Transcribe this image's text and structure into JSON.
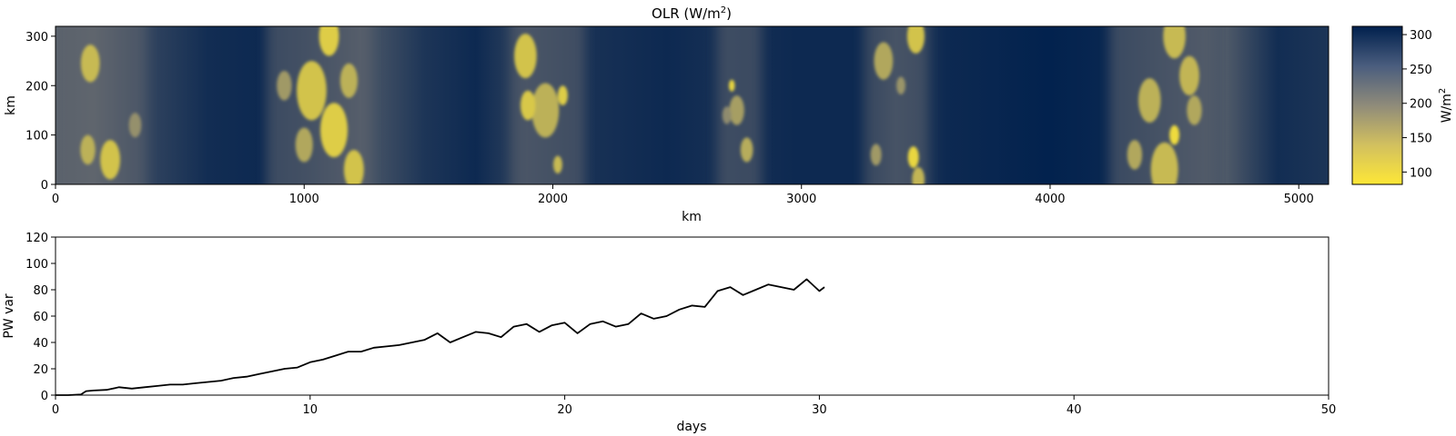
{
  "chart_data": [
    {
      "type": "heatmap",
      "title": "OLR (W/m",
      "title_sup": "2",
      "title_end": ")",
      "xlabel": "km",
      "ylabel": "km",
      "xlim": [
        0,
        5120
      ],
      "ylim": [
        0,
        320
      ],
      "xticks": [
        0,
        1000,
        2000,
        3000,
        4000,
        5000
      ],
      "yticks": [
        0,
        100,
        200,
        300
      ],
      "colormap": "cividis (reversed)",
      "colors": {
        "low": "#fde737",
        "mid": "#7c7b78",
        "high": "#00204d"
      },
      "colorbar": {
        "label": "W/m",
        "label_sup": "2",
        "range": [
          82,
          312
        ],
        "ticks": [
          100,
          150,
          200,
          250,
          300
        ]
      },
      "convective_bands_km": [
        {
          "center": 180,
          "width": 380
        },
        {
          "center": 1060,
          "width": 420
        },
        {
          "center": 1980,
          "width": 300
        },
        {
          "center": 2750,
          "width": 180
        },
        {
          "center": 3380,
          "width": 260
        },
        {
          "center": 4450,
          "width": 420
        }
      ],
      "clusters": [
        {
          "x": 140,
          "y": 245,
          "r": 38,
          "v": 130
        },
        {
          "x": 220,
          "y": 50,
          "r": 40,
          "v": 120
        },
        {
          "x": 130,
          "y": 70,
          "r": 30,
          "v": 140
        },
        {
          "x": 320,
          "y": 120,
          "r": 25,
          "v": 175
        },
        {
          "x": 1030,
          "y": 190,
          "r": 60,
          "v": 120
        },
        {
          "x": 1120,
          "y": 110,
          "r": 55,
          "v": 110
        },
        {
          "x": 1100,
          "y": 300,
          "r": 40,
          "v": 110
        },
        {
          "x": 1200,
          "y": 30,
          "r": 40,
          "v": 120
        },
        {
          "x": 1180,
          "y": 210,
          "r": 35,
          "v": 140
        },
        {
          "x": 1000,
          "y": 80,
          "r": 35,
          "v": 150
        },
        {
          "x": 920,
          "y": 200,
          "r": 30,
          "v": 165
        },
        {
          "x": 1890,
          "y": 260,
          "r": 45,
          "v": 120
        },
        {
          "x": 1970,
          "y": 150,
          "r": 55,
          "v": 140
        },
        {
          "x": 1900,
          "y": 160,
          "r": 30,
          "v": 115
        },
        {
          "x": 2040,
          "y": 180,
          "r": 20,
          "v": 110
        },
        {
          "x": 2020,
          "y": 40,
          "r": 18,
          "v": 130
        },
        {
          "x": 2740,
          "y": 150,
          "r": 30,
          "v": 160
        },
        {
          "x": 2780,
          "y": 70,
          "r": 25,
          "v": 145
        },
        {
          "x": 2700,
          "y": 140,
          "r": 18,
          "v": 180
        },
        {
          "x": 2720,
          "y": 200,
          "r": 12,
          "v": 100
        },
        {
          "x": 3330,
          "y": 250,
          "r": 38,
          "v": 150
        },
        {
          "x": 3460,
          "y": 300,
          "r": 35,
          "v": 120
        },
        {
          "x": 3450,
          "y": 55,
          "r": 22,
          "v": 100
        },
        {
          "x": 3470,
          "y": 10,
          "r": 25,
          "v": 135
        },
        {
          "x": 3300,
          "y": 60,
          "r": 22,
          "v": 165
        },
        {
          "x": 3400,
          "y": 200,
          "r": 18,
          "v": 170
        },
        {
          "x": 4400,
          "y": 170,
          "r": 45,
          "v": 140
        },
        {
          "x": 4560,
          "y": 220,
          "r": 40,
          "v": 135
        },
        {
          "x": 4460,
          "y": 30,
          "r": 55,
          "v": 130
        },
        {
          "x": 4340,
          "y": 60,
          "r": 30,
          "v": 150
        },
        {
          "x": 4500,
          "y": 300,
          "r": 45,
          "v": 130
        },
        {
          "x": 4500,
          "y": 100,
          "r": 20,
          "v": 95
        },
        {
          "x": 4580,
          "y": 150,
          "r": 30,
          "v": 150
        }
      ]
    },
    {
      "type": "line",
      "title": "",
      "xlabel": "days",
      "ylabel": "PW var",
      "xlim": [
        0,
        50
      ],
      "ylim": [
        0,
        120
      ],
      "xticks": [
        0,
        10,
        20,
        30,
        40,
        50
      ],
      "yticks": [
        0,
        20,
        40,
        60,
        80,
        100,
        120
      ],
      "line_color": "#000000",
      "series": [
        {
          "x": [
            0,
            0.5,
            1.0,
            1.2,
            1.5,
            2.0,
            2.5,
            3.0,
            3.5,
            4.0,
            4.5,
            5.0,
            5.5,
            6.0,
            6.5,
            7.0,
            7.5,
            8.0,
            8.5,
            9.0,
            9.5,
            10.0,
            10.5,
            11.0,
            11.5,
            12.0,
            12.5,
            13.0,
            13.5,
            14.0,
            14.5,
            15.0,
            15.5,
            16.0,
            16.5,
            17.0,
            17.5,
            18.0,
            18.5,
            19.0,
            19.5,
            20.0,
            20.5,
            21.0,
            21.5,
            22.0,
            22.5,
            23.0,
            23.5,
            24.0,
            24.5,
            25.0,
            25.5,
            26.0,
            26.5,
            27.0,
            27.5,
            28.0,
            28.5,
            29.0,
            29.5,
            30.0,
            30.2
          ],
          "values": [
            0,
            0,
            0.5,
            3,
            3.5,
            4,
            6,
            5,
            6,
            7,
            8,
            8,
            9,
            10,
            11,
            13,
            14,
            16,
            18,
            20,
            21,
            25,
            27,
            30,
            33,
            33,
            36,
            37,
            38,
            40,
            42,
            47,
            40,
            44,
            48,
            47,
            44,
            52,
            54,
            48,
            53,
            55,
            47,
            54,
            56,
            52,
            54,
            62,
            58,
            60,
            65,
            68,
            67,
            79,
            82,
            76,
            80,
            84,
            82,
            80,
            88,
            79,
            82
          ]
        }
      ]
    }
  ]
}
